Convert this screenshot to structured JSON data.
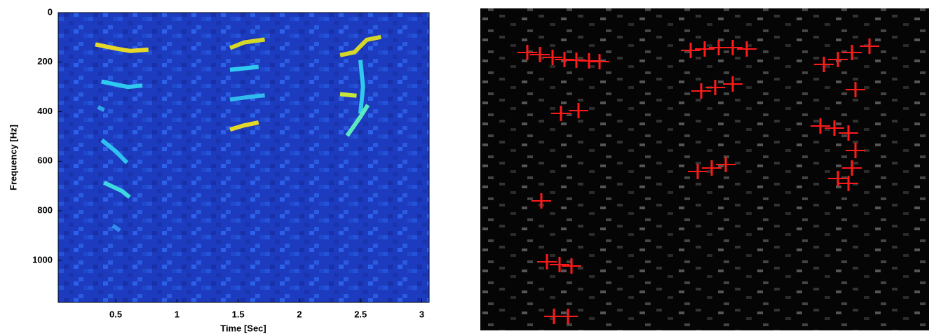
{
  "chart_data": {
    "type": "spectrogram",
    "x_label": "Time [Sec]",
    "y_label": "Frequency [Hz]",
    "xlim": [
      0.03,
      3.06
    ],
    "xticks": [
      0.5,
      1,
      1.5,
      2,
      2.5,
      3
    ],
    "ylim": [
      0,
      1170
    ],
    "yticks": [
      0,
      200,
      400,
      600,
      800,
      1000
    ],
    "y_reversed": true,
    "background_color": "#1c3bbf",
    "series": [
      {
        "color": "#f0e020",
        "x": [
          0.35,
          0.5,
          0.62,
          0.75
        ],
        "values": [
          130,
          145,
          155,
          150
        ]
      },
      {
        "color": "#30d0f0",
        "x": [
          0.4,
          0.6,
          0.7
        ],
        "values": [
          280,
          300,
          295
        ]
      },
      {
        "color": "#30a8f0",
        "x": [
          0.37,
          0.39
        ],
        "values": [
          385,
          390
        ]
      },
      {
        "color": "#30c8f0",
        "x": [
          0.4,
          0.5,
          0.58
        ],
        "values": [
          520,
          560,
          600
        ]
      },
      {
        "color": "#40e0e0",
        "x": [
          0.42,
          0.55,
          0.6
        ],
        "values": [
          690,
          720,
          740
        ]
      },
      {
        "color": "#3090f0",
        "x": [
          0.49,
          0.52
        ],
        "values": [
          865,
          875
        ]
      },
      {
        "color": "#e0e020",
        "x": [
          1.45,
          1.55,
          1.7
        ],
        "values": [
          140,
          120,
          110
        ]
      },
      {
        "color": "#30d0f0",
        "x": [
          1.45,
          1.55,
          1.65
        ],
        "values": [
          230,
          225,
          220
        ]
      },
      {
        "color": "#30c0f0",
        "x": [
          1.45,
          1.6,
          1.7
        ],
        "values": [
          350,
          340,
          335
        ]
      },
      {
        "color": "#f0e020",
        "x": [
          1.45,
          1.55,
          1.65
        ],
        "values": [
          470,
          455,
          445
        ]
      },
      {
        "color": "#e0e020",
        "x": [
          2.35,
          2.45,
          2.55,
          2.65
        ],
        "values": [
          170,
          160,
          110,
          100
        ]
      },
      {
        "color": "#30d0f0",
        "x": [
          2.5,
          2.52,
          2.5
        ],
        "values": [
          200,
          300,
          400
        ]
      },
      {
        "color": "#d0f030",
        "x": [
          2.35,
          2.45
        ],
        "values": [
          330,
          335
        ]
      },
      {
        "color": "#60f0c0",
        "x": [
          2.4,
          2.5,
          2.55
        ],
        "values": [
          490,
          420,
          380
        ]
      }
    ]
  }
}
